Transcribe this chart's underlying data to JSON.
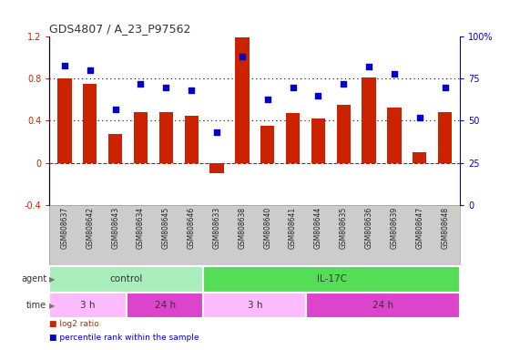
{
  "title": "GDS4807 / A_23_P97562",
  "samples": [
    "GSM808637",
    "GSM808642",
    "GSM808643",
    "GSM808634",
    "GSM808645",
    "GSM808646",
    "GSM808633",
    "GSM808638",
    "GSM808640",
    "GSM808641",
    "GSM808644",
    "GSM808635",
    "GSM808636",
    "GSM808639",
    "GSM808647",
    "GSM808648"
  ],
  "log2_ratio": [
    0.8,
    0.75,
    0.27,
    0.48,
    0.48,
    0.45,
    -0.1,
    1.19,
    0.35,
    0.47,
    0.42,
    0.55,
    0.81,
    0.53,
    0.1,
    0.48
  ],
  "percentile": [
    83,
    80,
    57,
    72,
    70,
    68,
    43,
    88,
    63,
    70,
    65,
    72,
    82,
    78,
    52,
    70
  ],
  "bar_color": "#cc2200",
  "dot_color": "#0000cc",
  "ylim_left": [
    -0.4,
    1.2
  ],
  "ylim_right": [
    0,
    100
  ],
  "yticks_left": [
    -0.4,
    0.0,
    0.4,
    0.8,
    1.2
  ],
  "yticks_right": [
    0,
    25,
    50,
    75,
    100
  ],
  "hlines": [
    0.0,
    0.4,
    0.8
  ],
  "hline_colors": [
    "#dd0000",
    "#000000",
    "#000000"
  ],
  "hline_styles": [
    "--",
    "dotted",
    "dotted"
  ],
  "agent_groups": [
    {
      "label": "control",
      "start": 0,
      "end": 6,
      "color": "#aaeebb"
    },
    {
      "label": "IL-17C",
      "start": 6,
      "end": 16,
      "color": "#55dd55"
    }
  ],
  "time_groups": [
    {
      "label": "3 h",
      "start": 0,
      "end": 3,
      "color": "#ffbbff"
    },
    {
      "label": "24 h",
      "start": 3,
      "end": 6,
      "color": "#dd44cc"
    },
    {
      "label": "3 h",
      "start": 6,
      "end": 10,
      "color": "#ffbbff"
    },
    {
      "label": "24 h",
      "start": 10,
      "end": 16,
      "color": "#dd44cc"
    }
  ],
  "bar_color_legend": "#cc2200",
  "dot_color_legend": "#0000cc",
  "legend_bar_label": "log2 ratio",
  "legend_dot_label": "percentile rank within the sample",
  "bar_width": 0.55,
  "background_color": "#ffffff",
  "plot_bg_color": "#ffffff",
  "sample_bg_color": "#cccccc"
}
